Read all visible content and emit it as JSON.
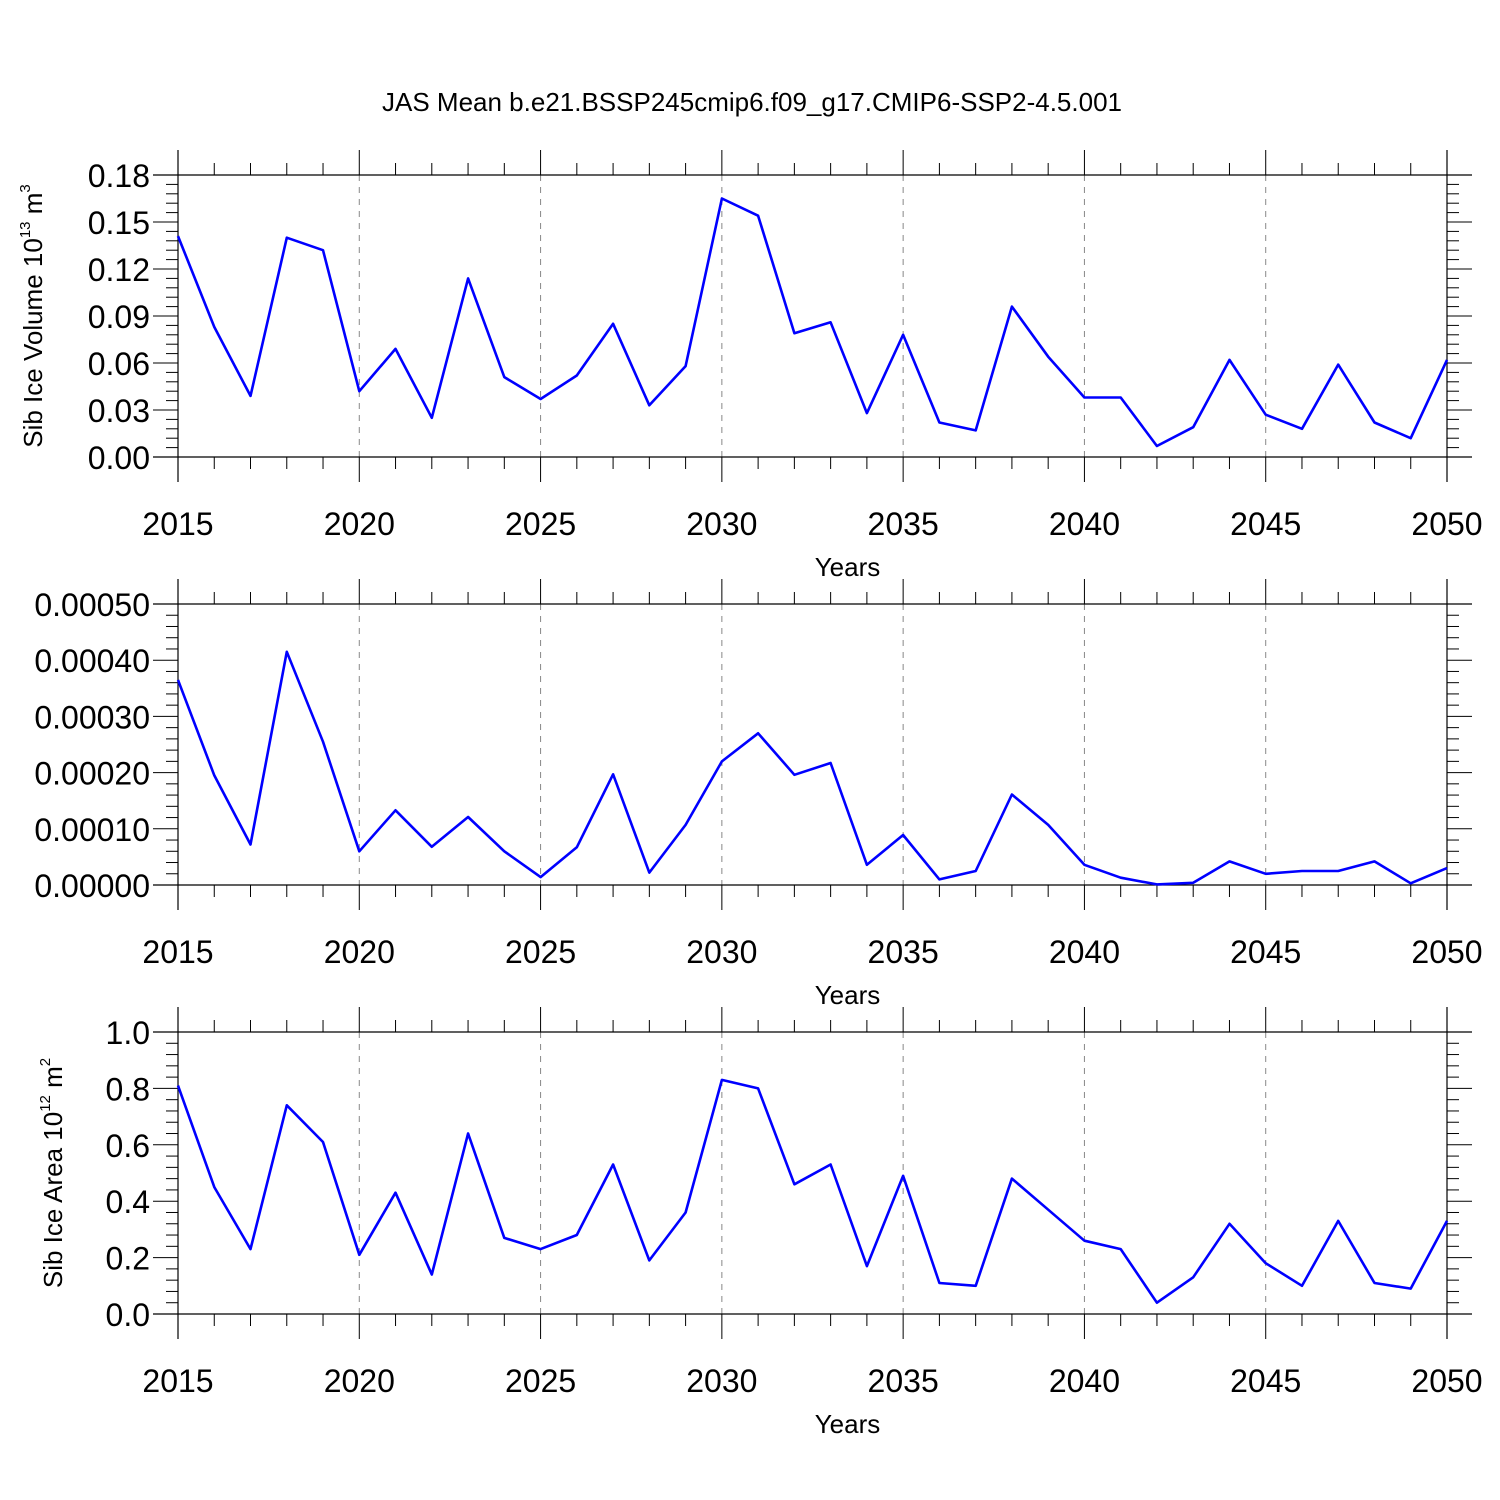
{
  "figure": {
    "title": "JAS Mean b.e21.BSSP245cmip6.f09_g17.CMIP6-SSP2-4.5.001",
    "line_color": "#0000ff",
    "grid_color": "#888888"
  },
  "chart_data": [
    {
      "type": "line",
      "title": "JAS Mean b.e21.BSSP245cmip6.f09_g17.CMIP6-SSP2-4.5.001",
      "xlabel": "Years",
      "ylabel": {
        "base": "Sib Ice Volume 10",
        "exp1": "13",
        "unit": " m",
        "exp2": "3"
      },
      "xlim": [
        2015,
        2050
      ],
      "ylim": [
        0,
        0.18
      ],
      "xticks": [
        "2015",
        "2020",
        "2025",
        "2030",
        "2035",
        "2040",
        "2045",
        "2050"
      ],
      "yticks": [
        "0.00",
        "0.03",
        "0.06",
        "0.09",
        "0.12",
        "0.15",
        "0.18"
      ],
      "grid": "vertical dashed at major x ticks",
      "x": [
        2015,
        2016,
        2017,
        2018,
        2019,
        2020,
        2021,
        2022,
        2023,
        2024,
        2025,
        2026,
        2027,
        2028,
        2029,
        2030,
        2031,
        2032,
        2033,
        2034,
        2035,
        2036,
        2037,
        2038,
        2039,
        2040,
        2041,
        2042,
        2043,
        2044,
        2045,
        2046,
        2047,
        2048,
        2049,
        2050
      ],
      "values": [
        0.141,
        0.083,
        0.039,
        0.14,
        0.132,
        0.042,
        0.069,
        0.025,
        0.114,
        0.051,
        0.037,
        0.052,
        0.085,
        0.033,
        0.058,
        0.165,
        0.154,
        0.079,
        0.086,
        0.028,
        0.078,
        0.022,
        0.017,
        0.096,
        0.064,
        0.038,
        0.038,
        0.007,
        0.019,
        0.062,
        0.027,
        0.018,
        0.059,
        0.022,
        0.012,
        0.062
      ]
    },
    {
      "type": "line",
      "xlabel": "Years",
      "ylabel": null,
      "xlim": [
        2015,
        2050
      ],
      "ylim": [
        0,
        0.0005
      ],
      "xticks": [
        "2015",
        "2020",
        "2025",
        "2030",
        "2035",
        "2040",
        "2045",
        "2050"
      ],
      "yticks": [
        "0.00000",
        "0.00010",
        "0.00020",
        "0.00030",
        "0.00040",
        "0.00050"
      ],
      "grid": "vertical dashed at major x ticks",
      "x": [
        2015,
        2016,
        2017,
        2018,
        2019,
        2020,
        2021,
        2022,
        2023,
        2024,
        2025,
        2026,
        2027,
        2028,
        2029,
        2030,
        2031,
        2032,
        2033,
        2034,
        2035,
        2036,
        2037,
        2038,
        2039,
        2040,
        2041,
        2042,
        2043,
        2044,
        2045,
        2046,
        2047,
        2048,
        2049,
        2050
      ],
      "values": [
        0.000365,
        0.000195,
        7.2e-05,
        0.000415,
        0.000255,
        6e-05,
        0.000133,
        6.8e-05,
        0.000121,
        6e-05,
        1.4e-05,
        6.7e-05,
        0.000197,
        2.2e-05,
        0.000107,
        0.00022,
        0.00027,
        0.000196,
        0.000217,
        3.6e-05,
        8.9e-05,
        1e-05,
        2.5e-05,
        0.000161,
        0.000107,
        3.6e-05,
        1.3e-05,
        1e-06,
        4e-06,
        4.2e-05,
        2e-05,
        2.5e-05,
        2.5e-05,
        4.2e-05,
        3e-06,
        3e-05
      ]
    },
    {
      "type": "line",
      "xlabel": "Years",
      "ylabel": {
        "base": "Sib Ice Area 10",
        "exp1": "12",
        "unit": " m",
        "exp2": "2"
      },
      "xlim": [
        2015,
        2050
      ],
      "ylim": [
        0,
        1.0
      ],
      "xticks": [
        "2015",
        "2020",
        "2025",
        "2030",
        "2035",
        "2040",
        "2045",
        "2050"
      ],
      "yticks": [
        "0.0",
        "0.2",
        "0.4",
        "0.6",
        "0.8",
        "1.0"
      ],
      "grid": "vertical dashed at major x ticks",
      "x": [
        2015,
        2016,
        2017,
        2018,
        2019,
        2020,
        2021,
        2022,
        2023,
        2024,
        2025,
        2026,
        2027,
        2028,
        2029,
        2030,
        2031,
        2032,
        2033,
        2034,
        2035,
        2036,
        2037,
        2038,
        2039,
        2040,
        2041,
        2042,
        2043,
        2044,
        2045,
        2046,
        2047,
        2048,
        2049,
        2050
      ],
      "values": [
        0.81,
        0.45,
        0.23,
        0.74,
        0.61,
        0.21,
        0.43,
        0.14,
        0.64,
        0.27,
        0.23,
        0.28,
        0.53,
        0.19,
        0.36,
        0.83,
        0.8,
        0.46,
        0.53,
        0.17,
        0.49,
        0.11,
        0.1,
        0.48,
        0.37,
        0.26,
        0.23,
        0.04,
        0.13,
        0.32,
        0.18,
        0.1,
        0.33,
        0.11,
        0.09,
        0.33
      ]
    }
  ]
}
